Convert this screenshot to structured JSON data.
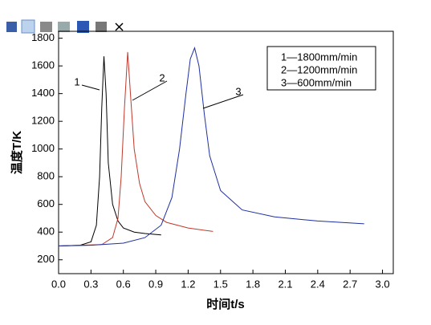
{
  "chart_data": {
    "type": "line",
    "x_label": "时间t/s",
    "y_label": "温度T/K",
    "xlim": [
      0,
      3.1
    ],
    "ylim": [
      100,
      1850
    ],
    "xticks": [
      {
        "value": 0,
        "label": "0.0"
      },
      {
        "value": 0.3,
        "label": "0.3"
      },
      {
        "value": 0.6,
        "label": "0.6"
      },
      {
        "value": 0.9,
        "label": "0.9"
      },
      {
        "value": 1.2,
        "label": "1.2"
      },
      {
        "value": 1.5,
        "label": "1.5"
      },
      {
        "value": 1.8,
        "label": "1.8"
      },
      {
        "value": 2.1,
        "label": "2.1"
      },
      {
        "value": 2.4,
        "label": "2.4"
      },
      {
        "value": 2.7,
        "label": "2.7"
      },
      {
        "value": 3.0,
        "label": "3.0"
      }
    ],
    "yticks": [
      200,
      400,
      600,
      800,
      1000,
      1200,
      1400,
      1600,
      1800
    ],
    "legend": "upper right",
    "annotations": [
      "1",
      "2",
      "3"
    ],
    "series": [
      {
        "name": "1—1800mm/min",
        "color": "#000000",
        "x": [
          0,
          0.2,
          0.3,
          0.35,
          0.38,
          0.4,
          0.42,
          0.44,
          0.46,
          0.5,
          0.55,
          0.6,
          0.7,
          0.8,
          0.95
        ],
        "values": [
          300,
          305,
          330,
          450,
          800,
          1300,
          1670,
          1400,
          900,
          600,
          480,
          430,
          400,
          390,
          380
        ]
      },
      {
        "name": "2—1200mm/min",
        "color": "#c0392b",
        "x": [
          0,
          0.4,
          0.5,
          0.55,
          0.58,
          0.61,
          0.64,
          0.67,
          0.7,
          0.75,
          0.8,
          0.9,
          1.0,
          1.2,
          1.43
        ],
        "values": [
          300,
          310,
          360,
          500,
          800,
          1300,
          1700,
          1350,
          1000,
          750,
          620,
          520,
          470,
          430,
          405
        ]
      },
      {
        "name": "3—600mm/min",
        "color": "#1f2fa0",
        "x": [
          0,
          0.3,
          0.6,
          0.8,
          0.95,
          1.05,
          1.12,
          1.18,
          1.22,
          1.26,
          1.3,
          1.35,
          1.4,
          1.5,
          1.7,
          2.0,
          2.4,
          2.83
        ],
        "values": [
          300,
          305,
          320,
          360,
          450,
          650,
          1000,
          1400,
          1650,
          1730,
          1600,
          1250,
          950,
          700,
          560,
          510,
          480,
          460
        ]
      }
    ]
  }
}
